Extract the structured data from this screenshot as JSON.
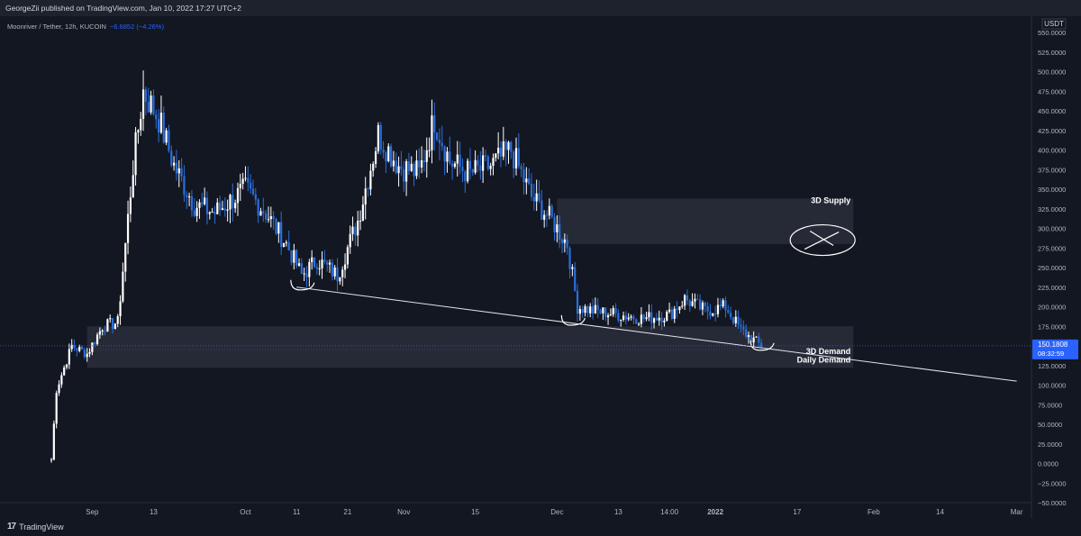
{
  "header": {
    "text": "GeorgeZii published on TradingView.com, Jan 10, 2022 17:27 UTC+2"
  },
  "legend": {
    "symbol": "Moonriver / Tether, 12h, KUCOIN",
    "change": "−6.6852 (−4.26%)"
  },
  "footer": {
    "brand": "TradingView"
  },
  "colors": {
    "bg": "#131722",
    "candle": "#2a6fdb",
    "candle_light": "#ffffff",
    "zone": "#2a2e39",
    "line": "#e0e3eb",
    "price_tag": "#2962ff"
  },
  "chart_data": {
    "type": "candlestick",
    "currency_label": "USDT",
    "y_ticks": [
      "550.0000",
      "525.0000",
      "500.0000",
      "475.0000",
      "450.0000",
      "425.0000",
      "400.0000",
      "375.0000",
      "350.0000",
      "325.0000",
      "300.0000",
      "275.0000",
      "250.0000",
      "225.0000",
      "200.0000",
      "175.0000",
      "150.0000",
      "125.0000",
      "100.0000",
      "75.0000",
      "50.0000",
      "25.0000",
      "0.0000",
      "−25.0000",
      "−50.0000"
    ],
    "y_tick_values": [
      550,
      525,
      500,
      475,
      450,
      425,
      400,
      375,
      350,
      325,
      300,
      275,
      250,
      225,
      200,
      175,
      150,
      125,
      100,
      75,
      50,
      25,
      0,
      -25,
      -50
    ],
    "x_ticks": [
      "Sep",
      "13",
      "Oct",
      "11",
      "21",
      "Nov",
      "15",
      "Dec",
      "13",
      "14:00",
      "2022",
      "17",
      "Feb",
      "14",
      "Mar"
    ],
    "x_tick_dates": [
      "2021-09-01",
      "2021-09-13",
      "2021-10-01",
      "2021-10-11",
      "2021-10-21",
      "2021-11-01",
      "2021-11-15",
      "2021-12-01",
      "2021-12-13",
      "2021-12-23",
      "2022-01-01",
      "2022-01-17",
      "2022-02-01",
      "2022-02-14",
      "2022-03-01"
    ],
    "ylim": [
      -55,
      560
    ],
    "current_price": {
      "value": 150.1808,
      "label": "150.1808",
      "countdown": "08:32:59"
    },
    "ohlc_anchors": [
      {
        "d": "2021-08-24",
        "c": 5
      },
      {
        "d": "2021-08-25",
        "c": 95
      },
      {
        "d": "2021-08-28",
        "c": 150
      },
      {
        "d": "2021-08-31",
        "c": 140
      },
      {
        "d": "2021-09-03",
        "c": 175
      },
      {
        "d": "2021-09-06",
        "c": 180
      },
      {
        "d": "2021-09-09",
        "c": 380
      },
      {
        "d": "2021-09-11",
        "c": 475
      },
      {
        "d": "2021-09-14",
        "c": 440
      },
      {
        "d": "2021-09-17",
        "c": 380
      },
      {
        "d": "2021-09-21",
        "c": 330
      },
      {
        "d": "2021-09-25",
        "c": 320
      },
      {
        "d": "2021-10-01",
        "c": 350
      },
      {
        "d": "2021-10-05",
        "c": 320
      },
      {
        "d": "2021-10-09",
        "c": 280
      },
      {
        "d": "2021-10-12",
        "c": 240
      },
      {
        "d": "2021-10-15",
        "c": 260
      },
      {
        "d": "2021-10-19",
        "c": 240
      },
      {
        "d": "2021-10-23",
        "c": 310
      },
      {
        "d": "2021-10-27",
        "c": 420
      },
      {
        "d": "2021-10-31",
        "c": 380
      },
      {
        "d": "2021-11-04",
        "c": 370
      },
      {
        "d": "2021-11-07",
        "c": 440
      },
      {
        "d": "2021-11-10",
        "c": 385
      },
      {
        "d": "2021-11-14",
        "c": 370
      },
      {
        "d": "2021-11-18",
        "c": 380
      },
      {
        "d": "2021-11-22",
        "c": 400
      },
      {
        "d": "2021-11-26",
        "c": 340
      },
      {
        "d": "2021-11-30",
        "c": 310
      },
      {
        "d": "2021-12-03",
        "c": 280
      },
      {
        "d": "2021-12-05",
        "c": 200
      },
      {
        "d": "2021-12-08",
        "c": 195
      },
      {
        "d": "2021-12-13",
        "c": 190
      },
      {
        "d": "2021-12-18",
        "c": 185
      },
      {
        "d": "2021-12-23",
        "c": 190
      },
      {
        "d": "2021-12-26",
        "c": 210
      },
      {
        "d": "2021-12-30",
        "c": 195
      },
      {
        "d": "2022-01-03",
        "c": 200
      },
      {
        "d": "2022-01-06",
        "c": 170
      },
      {
        "d": "2022-01-10",
        "c": 150
      }
    ],
    "zones": [
      {
        "label": "3D Supply",
        "from_date": "2021-12-01",
        "to_date": "2022-01-28",
        "low": 280,
        "high": 338
      },
      {
        "label": "3D Demand",
        "from_date": "2021-08-31",
        "to_date": "2022-01-28",
        "low": 143,
        "high": 175
      },
      {
        "label": "Daily Demand",
        "from_date": "2021-08-31",
        "to_date": "2022-01-28",
        "low": 122,
        "high": 148
      }
    ],
    "trendline": {
      "from": {
        "d": "2021-10-11",
        "v": 225
      },
      "to": {
        "d": "2022-03-01",
        "v": 105
      }
    },
    "annotations": [
      {
        "type": "bracket",
        "d": "2021-10-12",
        "v": 225
      },
      {
        "type": "bracket",
        "d": "2021-12-04",
        "v": 180
      },
      {
        "type": "bracket",
        "d": "2022-01-10",
        "v": 148
      },
      {
        "type": "circle-x",
        "d": "2022-01-22",
        "v": 285
      }
    ]
  }
}
